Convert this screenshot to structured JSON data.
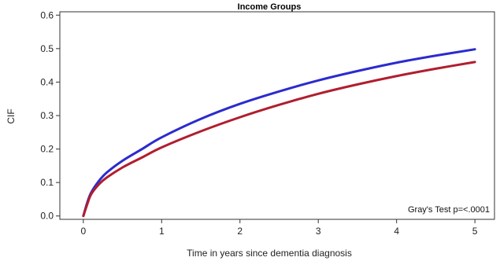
{
  "chart_data": {
    "type": "line",
    "title": "Income Groups",
    "xlabel": "Time in years since dementia diagnosis",
    "ylabel": "CIF",
    "xlim": [
      -0.3,
      5.25
    ],
    "ylim": [
      -0.01,
      0.61
    ],
    "x_ticks": [
      0,
      1,
      2,
      3,
      4,
      5
    ],
    "x_tick_labels": [
      "0",
      "1",
      "2",
      "3",
      "4",
      "5"
    ],
    "y_ticks": [
      0.0,
      0.1,
      0.2,
      0.3,
      0.4,
      0.5,
      0.6
    ],
    "y_tick_labels": [
      "0.0",
      "0.1",
      "0.2",
      "0.3",
      "0.4",
      "0.5",
      "0.6"
    ],
    "grid": false,
    "annotation": "Gray's Test p=<.0001",
    "series": [
      {
        "color": "#2b2bcf",
        "x": [
          0,
          0.05,
          0.1,
          0.2,
          0.3,
          0.5,
          0.75,
          1,
          1.5,
          2,
          2.5,
          3,
          3.5,
          4,
          4.5,
          5
        ],
        "values": [
          0,
          0.04,
          0.07,
          0.105,
          0.13,
          0.165,
          0.2,
          0.235,
          0.29,
          0.335,
          0.372,
          0.405,
          0.433,
          0.458,
          0.479,
          0.498
        ]
      },
      {
        "color": "#b01e2f",
        "x": [
          0,
          0.05,
          0.1,
          0.2,
          0.3,
          0.5,
          0.75,
          1,
          1.5,
          2,
          2.5,
          3,
          3.5,
          4,
          4.5,
          5
        ],
        "values": [
          0,
          0.035,
          0.065,
          0.095,
          0.115,
          0.145,
          0.175,
          0.205,
          0.253,
          0.295,
          0.332,
          0.365,
          0.393,
          0.418,
          0.44,
          0.46
        ]
      }
    ]
  }
}
